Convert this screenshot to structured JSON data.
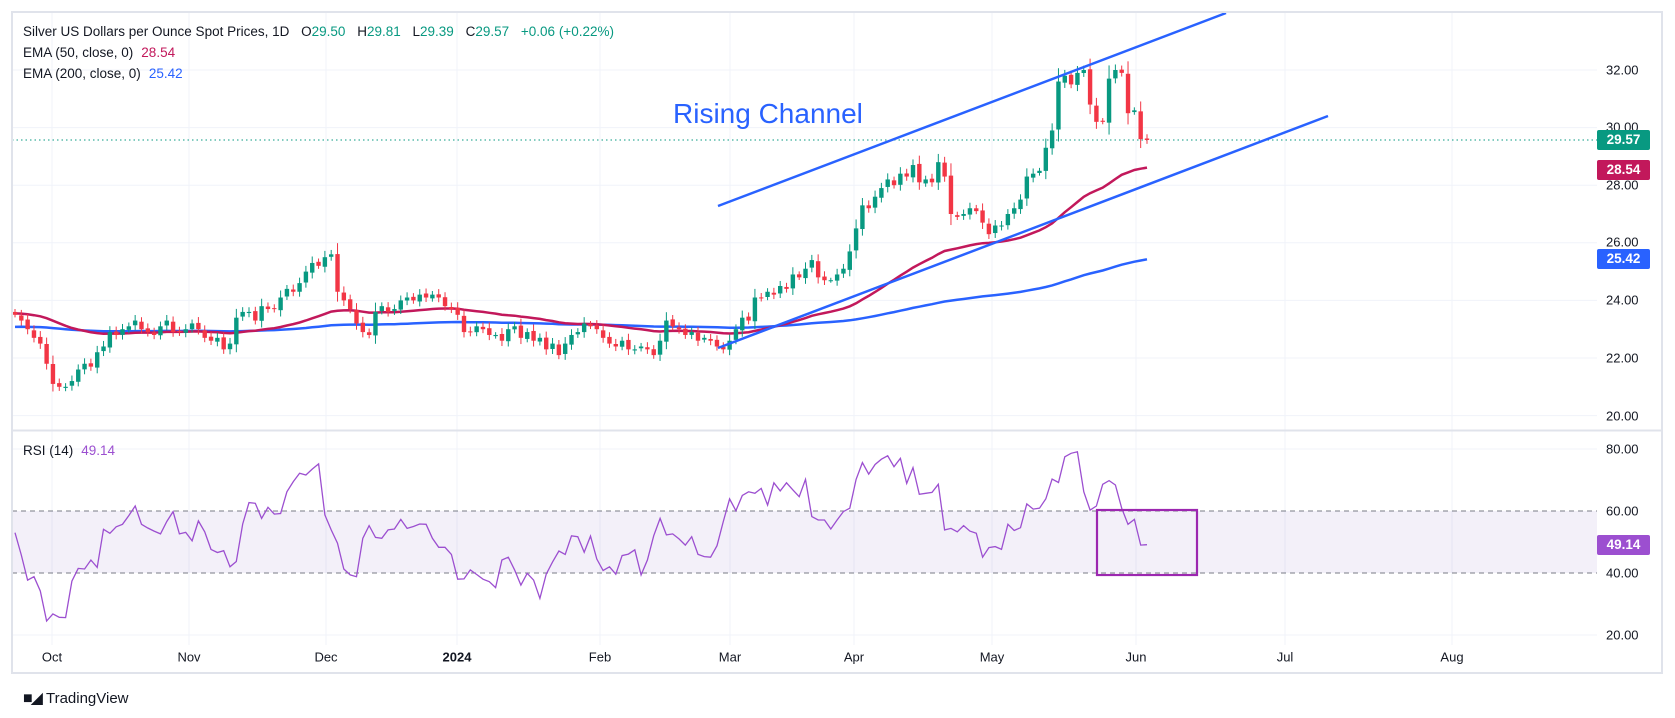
{
  "legend": {
    "symbol": "Silver US Dollars per Ounce Spot Prices, 1D",
    "o_label": "O",
    "o_value": "29.50",
    "h_label": "H",
    "h_value": "29.81",
    "l_label": "L",
    "l_value": "29.39",
    "c_label": "C",
    "c_value": "29.57",
    "change": "+0.06 (+0.22%)",
    "ema50_label": "EMA (50, close, 0)",
    "ema50_value": "28.54",
    "ema200_label": "EMA (200, close, 0)",
    "ema200_value": "25.42",
    "rsi_label": "RSI (14)",
    "rsi_value": "49.14"
  },
  "annotation": {
    "text": "Rising Channel"
  },
  "branding": {
    "logo_text": "TradingView",
    "logo_mark": "TV"
  },
  "colors": {
    "up": "#089981",
    "down": "#f23645",
    "ema50": "#c2185b",
    "ema200": "#2962ff",
    "channel": "#2962ff",
    "rsi": "#9c4fd0",
    "rsi_box": "#9c27b0",
    "last_price": "#089981"
  },
  "chart_data": [
    {
      "type": "candlestick",
      "title": "Silver US Dollars per Ounce Spot Prices, 1D",
      "ylim": [
        20,
        32.5
      ],
      "y_ticks": [
        "32.00",
        "30.00",
        "28.00",
        "26.00",
        "24.00",
        "22.00",
        "20.00"
      ],
      "x_ticks": [
        "Oct",
        "Nov",
        "Dec",
        "2024",
        "Feb",
        "Mar",
        "Apr",
        "May",
        "Jun",
        "Jul",
        "Aug"
      ],
      "grid": true,
      "last_price": {
        "value": 29.57,
        "label": "29.57"
      },
      "ema50": {
        "start": 23.55,
        "period": 50,
        "label": "28.54",
        "last": 28.54
      },
      "ema200": {
        "start": 23.08,
        "period": 200,
        "label": "25.42",
        "last": 25.42
      },
      "close": [
        23.5,
        23.3,
        23.0,
        22.7,
        22.5,
        21.8,
        21.1,
        21.0,
        21.0,
        21.2,
        21.6,
        21.8,
        21.7,
        22.2,
        22.4,
        22.9,
        22.8,
        23.0,
        23.1,
        23.3,
        23.0,
        22.9,
        22.8,
        23.1,
        23.3,
        22.9,
        22.9,
        23.0,
        23.2,
        23.0,
        22.7,
        22.6,
        22.7,
        22.3,
        22.5,
        23.4,
        23.6,
        23.6,
        23.3,
        23.8,
        23.7,
        23.7,
        24.1,
        24.4,
        24.3,
        24.6,
        25.0,
        25.3,
        25.2,
        25.5,
        25.6,
        24.3,
        24.0,
        23.7,
        23.2,
        22.9,
        22.8,
        23.6,
        23.8,
        23.6,
        23.7,
        24.0,
        24.1,
        24.0,
        24.2,
        24.1,
        24.2,
        24.1,
        23.8,
        23.7,
        23.5,
        22.9,
        22.9,
        23.1,
        23.0,
        22.8,
        22.8,
        22.6,
        23.0,
        23.1,
        22.7,
        22.9,
        22.6,
        22.7,
        22.3,
        22.5,
        22.1,
        22.5,
        22.8,
        22.9,
        23.2,
        23.1,
        23.0,
        22.7,
        22.5,
        22.4,
        22.6,
        22.3,
        22.3,
        22.4,
        22.3,
        22.1,
        22.6,
        23.3,
        23.1,
        23.0,
        22.8,
        22.9,
        22.6,
        22.7,
        22.6,
        22.4,
        22.3,
        22.6,
        23.0,
        23.4,
        23.3,
        24.1,
        24.1,
        24.3,
        24.2,
        24.5,
        24.4,
        24.9,
        24.8,
        25.1,
        25.4,
        24.8,
        24.7,
        24.7,
        24.9,
        25.1,
        25.7,
        26.5,
        27.3,
        27.2,
        27.6,
        27.9,
        28.2,
        28.0,
        28.4,
        28.3,
        28.7,
        28.1,
        28.2,
        28.1,
        28.8,
        28.3,
        27.0,
        26.9,
        27.0,
        27.2,
        27.1,
        26.7,
        26.3,
        26.6,
        26.6,
        27.0,
        27.2,
        27.5,
        28.3,
        28.4,
        28.5,
        29.3,
        29.9,
        31.6,
        31.8,
        31.5,
        31.9,
        32.0,
        30.8,
        30.2,
        30.2,
        31.7,
        32.0,
        31.9,
        30.5,
        30.6,
        29.6,
        29.57
      ]
    },
    {
      "type": "line",
      "title": "RSI (14)",
      "ylim": [
        15,
        85
      ],
      "y_ticks": [
        "80.00",
        "60.00",
        "40.00",
        "20.00"
      ],
      "band": [
        40,
        60
      ],
      "last": {
        "value": 49.14,
        "label": "49.14"
      },
      "values": [
        53,
        45.8,
        37.7,
        38.8,
        34.2,
        24.5,
        26.8,
        25.7,
        25.6,
        37.4,
        41.5,
        41.3,
        44.2,
        41.8,
        54.1,
        52.8,
        54.9,
        55.7,
        58.5,
        61.6,
        55.7,
        54.5,
        53.5,
        52.6,
        56.6,
        59.8,
        52.6,
        53.1,
        50.4,
        56.8,
        53.3,
        47.6,
        46.6,
        47.2,
        42,
        43.7,
        55.8,
        62.7,
        62.5,
        57.6,
        61.2,
        59,
        59.2,
        66.2,
        69.5,
        72.2,
        71.6,
        73.5,
        75.2,
        58.7,
        53.9,
        49.6,
        41.3,
        39.4,
        38.8,
        51.2,
        55.3,
        51.5,
        51.2,
        53.9,
        54.2,
        57.3,
        54.4,
        55,
        55.8,
        55.7,
        51.2,
        48.3,
        48.3,
        46,
        38,
        38.1,
        41,
        39.5,
        38,
        37.2,
        35.3,
        44.2,
        45.1,
        41,
        36.1,
        39.9,
        37.7,
        31.8,
        39.6,
        43.5,
        47.1,
        46,
        52,
        51.7,
        46.7,
        51.9,
        44.5,
        40.8,
        42,
        39.6,
        45.6,
        46.1,
        47.5,
        39.4,
        44.2,
        52,
        57.6,
        52.3,
        52.6,
        51,
        49,
        51.7,
        46,
        45.3,
        45.1,
        48.8,
        56.6,
        63.9,
        60.1,
        65,
        66.2,
        65.7,
        67.3,
        61.9,
        69.1,
        66.5,
        69.1,
        66.8,
        64.6,
        70.2,
        58.2,
        57.1,
        57.1,
        54.2,
        57.1,
        59.8,
        60.9,
        70.2,
        75.6,
        71.9,
        75,
        76.7,
        77.8,
        74.3,
        77,
        68.9,
        74,
        65.4,
        65.7,
        66,
        68.6,
        53.9,
        54.4,
        53.3,
        55.3,
        53.5,
        52.8,
        45.1,
        48.2,
        48.5,
        47.6,
        55.7,
        53.7,
        54.6,
        62.3,
        60.6,
        60.9,
        63.9,
        70.3,
        69.2,
        77.5,
        78.6,
        79.1,
        66.2,
        60.3,
        61.6,
        68.6,
        69.8,
        68.4,
        60.9,
        55.7,
        57.3,
        49,
        49.14
      ]
    }
  ]
}
